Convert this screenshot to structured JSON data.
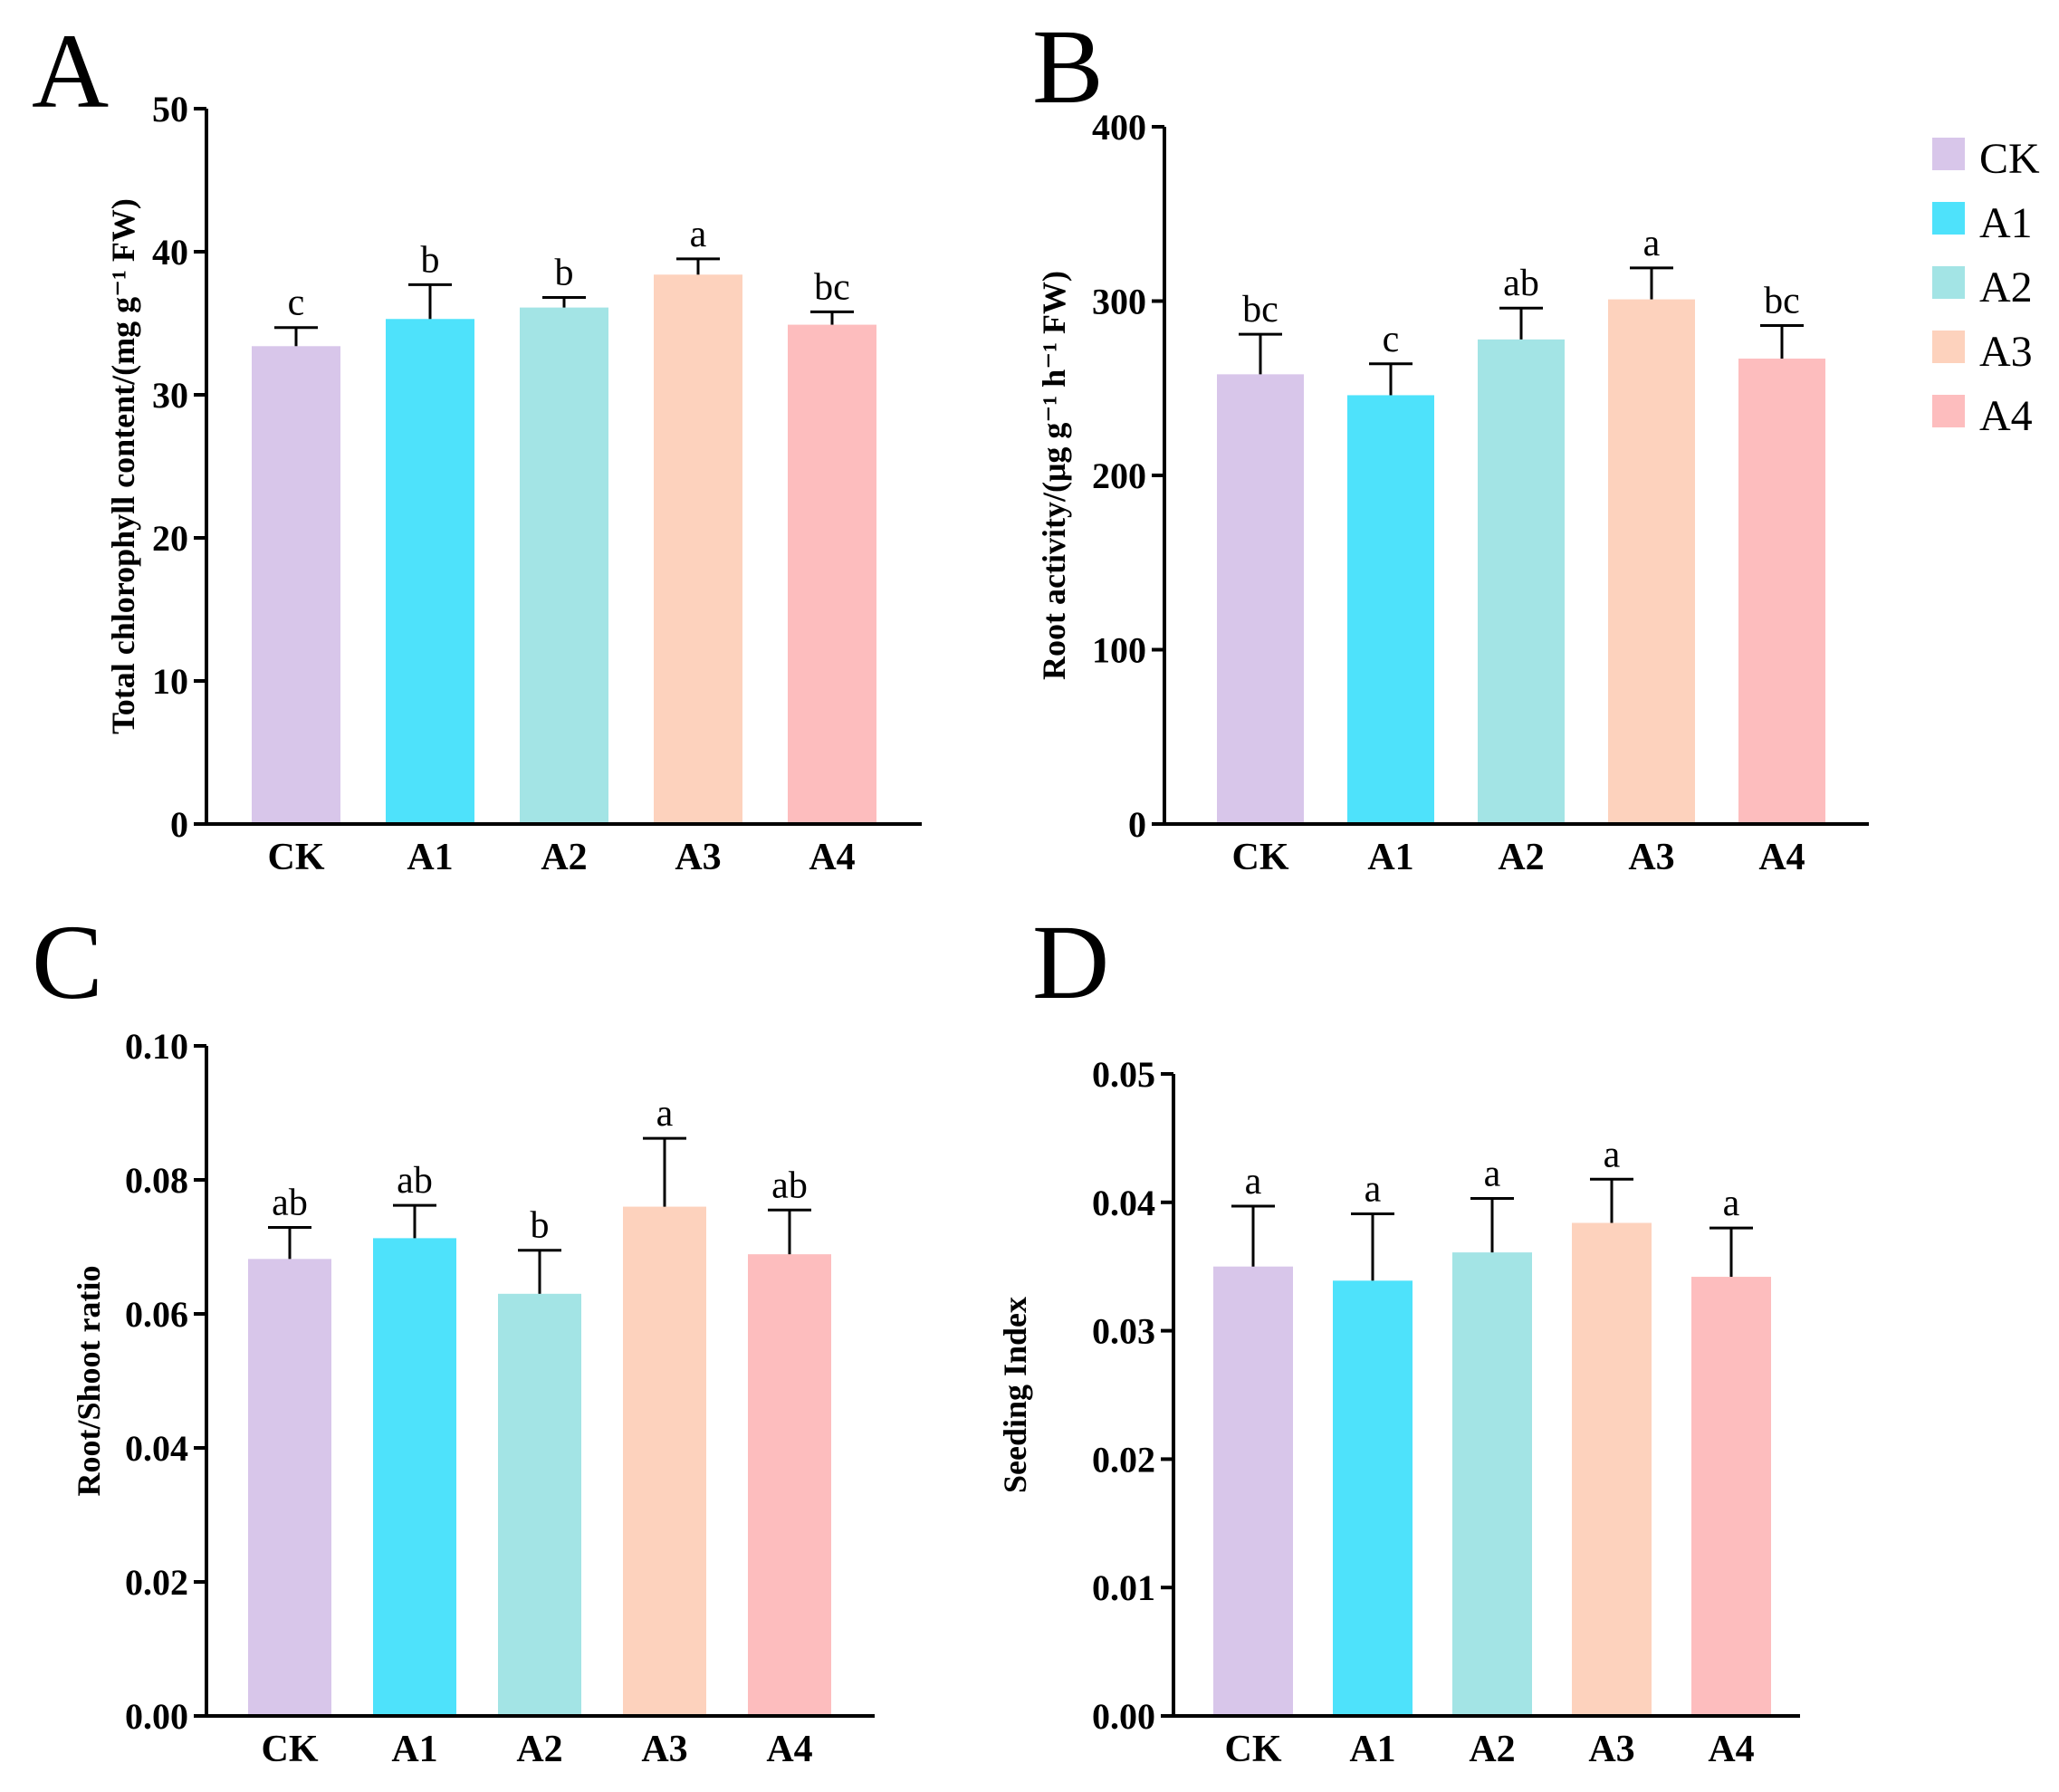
{
  "legend": {
    "items": [
      {
        "label": "CK",
        "color": "#d8c6ea"
      },
      {
        "label": "A1",
        "color": "#4ee2fb"
      },
      {
        "label": "A2",
        "color": "#a3e4e5"
      },
      {
        "label": "A3",
        "color": "#fdd2bd"
      },
      {
        "label": "A4",
        "color": "#fdbdbe"
      }
    ]
  },
  "chart_data": [
    {
      "panel": "A",
      "type": "bar",
      "categories": [
        "CK",
        "A1",
        "A2",
        "A3",
        "A4"
      ],
      "values": [
        33.4,
        35.3,
        36.1,
        38.4,
        34.9
      ],
      "errors": [
        1.3,
        2.4,
        0.7,
        1.1,
        0.9
      ],
      "significance": [
        "c",
        "b",
        "b",
        "a",
        "bc"
      ],
      "ylabel": "Total chlorophyll content/(mg g⁻¹ FW)",
      "xlabel": "",
      "ylim": [
        0,
        50
      ],
      "yticks": [
        "0",
        "10",
        "20",
        "30",
        "40",
        "50"
      ],
      "colors": [
        "#d8c6ea",
        "#4ee2fb",
        "#a3e4e5",
        "#fdd2bd",
        "#fdbdbe"
      ]
    },
    {
      "panel": "B",
      "type": "bar",
      "categories": [
        "CK",
        "A1",
        "A2",
        "A3",
        "A4"
      ],
      "values": [
        258,
        246,
        278,
        301,
        267
      ],
      "errors": [
        23,
        18,
        18,
        18,
        19
      ],
      "significance": [
        "bc",
        "c",
        "ab",
        "a",
        "bc"
      ],
      "ylabel": "Root activity/(μg g⁻¹ h⁻¹ FW)",
      "xlabel": "",
      "ylim": [
        0,
        400
      ],
      "yticks": [
        "0",
        "100",
        "200",
        "300",
        "400"
      ],
      "colors": [
        "#d8c6ea",
        "#4ee2fb",
        "#a3e4e5",
        "#fdd2bd",
        "#fdbdbe"
      ]
    },
    {
      "panel": "C",
      "type": "bar",
      "categories": [
        "CK",
        "A1",
        "A2",
        "A3",
        "A4"
      ],
      "values": [
        0.0682,
        0.0713,
        0.063,
        0.076,
        0.0689
      ],
      "errors": [
        0.0047,
        0.0049,
        0.0065,
        0.0102,
        0.0066
      ],
      "significance": [
        "ab",
        "ab",
        "b",
        "a",
        "ab"
      ],
      "ylabel": "Root/Shoot ratio",
      "xlabel": "",
      "ylim": [
        0,
        0.1
      ],
      "yticks": [
        "0.00",
        "0.02",
        "0.04",
        "0.06",
        "0.08",
        "0.10"
      ],
      "colors": [
        "#d8c6ea",
        "#4ee2fb",
        "#a3e4e5",
        "#fdd2bd",
        "#fdbdbe"
      ]
    },
    {
      "panel": "D",
      "type": "bar",
      "categories": [
        "CK",
        "A1",
        "A2",
        "A3",
        "A4"
      ],
      "values": [
        0.035,
        0.0339,
        0.0361,
        0.0384,
        0.0342
      ],
      "errors": [
        0.0047,
        0.0052,
        0.0042,
        0.0034,
        0.0038
      ],
      "significance": [
        "a",
        "a",
        "a",
        "a",
        "a"
      ],
      "ylabel": "Seeding Index",
      "xlabel": "",
      "ylim": [
        0,
        0.05
      ],
      "yticks": [
        "0.00",
        "0.01",
        "0.02",
        "0.03",
        "0.04",
        "0.05"
      ],
      "colors": [
        "#d8c6ea",
        "#4ee2fb",
        "#a3e4e5",
        "#fdd2bd",
        "#fdbdbe"
      ]
    }
  ]
}
